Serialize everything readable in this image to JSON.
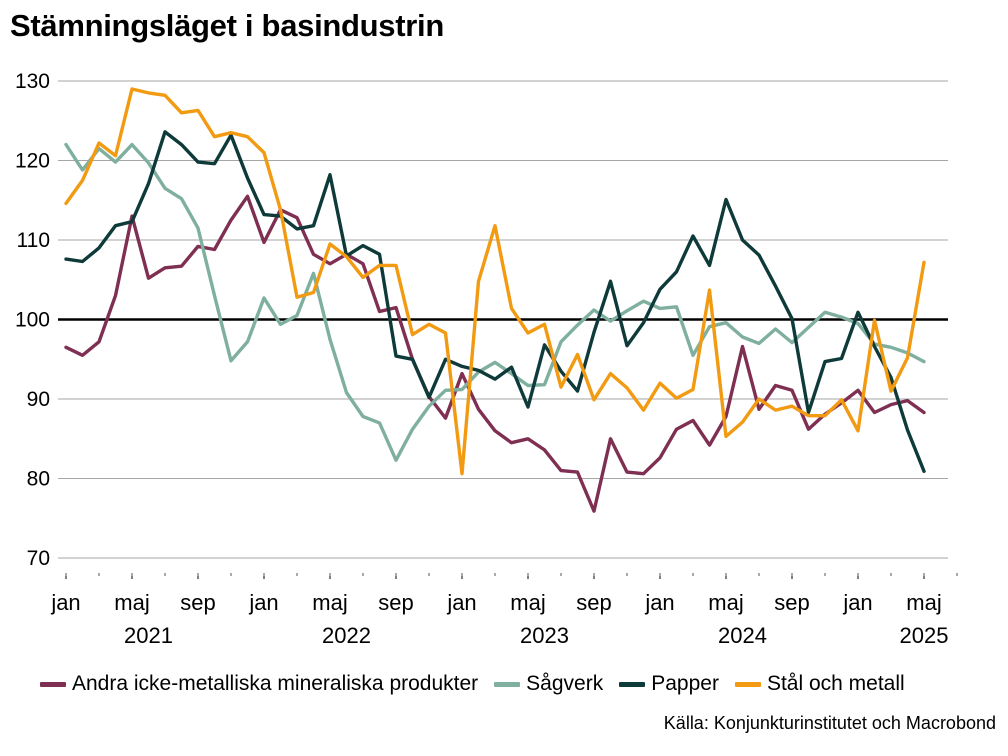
{
  "chart_data": {
    "type": "line",
    "title": "Stämningsläget i basindustrin",
    "ylim": [
      70,
      130
    ],
    "yticks": [
      70,
      80,
      90,
      100,
      110,
      120,
      130
    ],
    "reference_line": 100,
    "x_start": "2021-01",
    "x_end": "2025-06",
    "month_labels": [
      {
        "month": "2021-01",
        "label": "jan"
      },
      {
        "month": "2021-05",
        "label": "maj"
      },
      {
        "month": "2021-09",
        "label": "sep"
      },
      {
        "month": "2022-01",
        "label": "jan"
      },
      {
        "month": "2022-05",
        "label": "maj"
      },
      {
        "month": "2022-09",
        "label": "sep"
      },
      {
        "month": "2023-01",
        "label": "jan"
      },
      {
        "month": "2023-05",
        "label": "maj"
      },
      {
        "month": "2023-09",
        "label": "sep"
      },
      {
        "month": "2024-01",
        "label": "jan"
      },
      {
        "month": "2024-05",
        "label": "maj"
      },
      {
        "month": "2024-09",
        "label": "sep"
      },
      {
        "month": "2025-01",
        "label": "jan"
      },
      {
        "month": "2025-05",
        "label": "maj"
      }
    ],
    "year_labels": [
      {
        "year": "2021",
        "month": "2021-06"
      },
      {
        "year": "2022",
        "month": "2022-06"
      },
      {
        "year": "2023",
        "month": "2023-06"
      },
      {
        "year": "2024",
        "month": "2024-06"
      },
      {
        "year": "2025",
        "month": "2025-05"
      }
    ],
    "series": [
      {
        "name": "Andra icke-metalliska mineraliska produkter",
        "color": "#7e2f52",
        "start": "2021-01",
        "values": [
          96.5,
          95.5,
          97.2,
          103,
          113,
          105.2,
          106.5,
          106.7,
          109.2,
          108.8,
          112.5,
          115.5,
          109.7,
          113.8,
          112.8,
          108.2,
          107,
          108.2,
          107,
          101,
          101.5,
          95,
          90.3,
          87.6,
          93.2,
          88.7,
          86,
          84.5,
          85,
          83.6,
          81,
          80.8,
          75.9,
          85,
          80.8,
          80.6,
          82.6,
          86.2,
          87.3,
          84.2,
          87.8,
          96.6,
          88.7,
          91.7,
          91.1,
          86.2,
          88.1,
          89.5,
          91.1,
          88.3,
          89.3,
          89.8,
          88.3
        ]
      },
      {
        "name": "Sågverk",
        "color": "#7faf9e",
        "start": "2021-01",
        "values": [
          122,
          118.8,
          121.5,
          119.8,
          122,
          119.7,
          116.5,
          115.2,
          111.5,
          103,
          94.8,
          97.2,
          102.7,
          99.4,
          100.5,
          105.8,
          97.5,
          90.8,
          87.8,
          87,
          82.3,
          86.2,
          89.1,
          91.1,
          91.2,
          93.4,
          94.6,
          93.2,
          91.7,
          91.8,
          97.2,
          99.3,
          101.2,
          99.8,
          101.1,
          102.3,
          101.4,
          101.6,
          95.5,
          99.1,
          99.6,
          97.8,
          97,
          98.8,
          97.1,
          99,
          100.9,
          100.3,
          99.5,
          96.9,
          96.5,
          95.8,
          94.7
        ]
      },
      {
        "name": "Papper",
        "color": "#0f3a3a",
        "start": "2021-01",
        "values": [
          107.6,
          107.3,
          109,
          111.8,
          112.3,
          117.1,
          123.6,
          122,
          119.8,
          119.6,
          123.2,
          117.8,
          113.2,
          113,
          111.4,
          111.8,
          118.2,
          108,
          109.3,
          108.2,
          95.4,
          95,
          90.2,
          95,
          94.1,
          93.6,
          92.5,
          94,
          89,
          96.8,
          93.5,
          91,
          98.4,
          104.8,
          96.7,
          99.6,
          103.8,
          106,
          110.5,
          106.8,
          115.1,
          110,
          108.1,
          104.2,
          100.1,
          88.3,
          94.7,
          95.1,
          100.9,
          96.6,
          92.7,
          86.1,
          80.9
        ]
      },
      {
        "name": "Stål och metall",
        "color": "#f29a12",
        "start": "2021-01",
        "values": [
          114.6,
          117.5,
          122.2,
          120.6,
          129,
          128.5,
          128.2,
          126,
          126.3,
          123,
          123.5,
          123,
          121,
          113.8,
          102.8,
          103.4,
          109.5,
          107.9,
          105.3,
          106.8,
          106.8,
          98.1,
          99.4,
          98.3,
          80.6,
          104.8,
          111.8,
          101.4,
          98.3,
          99.4,
          91.5,
          95.6,
          89.9,
          93.2,
          91.4,
          88.6,
          92,
          90.1,
          91.2,
          103.7,
          85.3,
          87.1,
          90,
          88.6,
          89.1,
          87.9,
          87.9,
          89.9,
          86,
          99.9,
          91,
          95.2,
          107.2
        ]
      }
    ],
    "legend_position": "bottom"
  },
  "source": "Källa: Konjunkturinstitutet och Macrobond"
}
